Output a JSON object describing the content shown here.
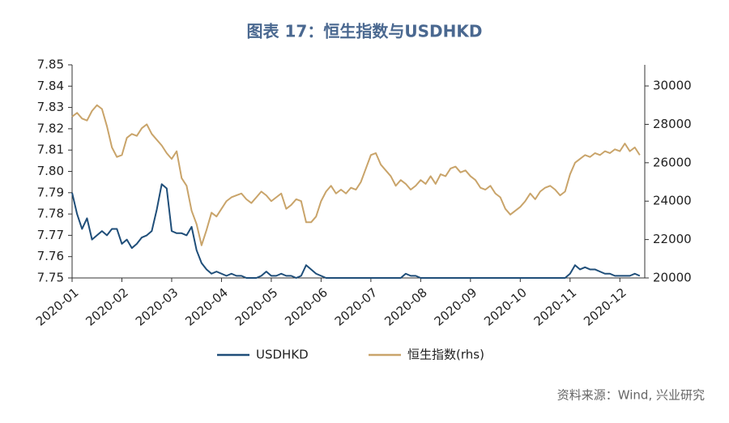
{
  "chart_data": {
    "type": "line",
    "title": "图表 17：恒生指数与USDHKD",
    "source": "资料来源：Wind, 兴业研究",
    "x": [
      1.0,
      1.1,
      1.2,
      1.3,
      1.4,
      1.5,
      1.6,
      1.7,
      1.8,
      1.9,
      2.0,
      2.1,
      2.2,
      2.3,
      2.4,
      2.5,
      2.6,
      2.7,
      2.8,
      2.9,
      3.0,
      3.1,
      3.2,
      3.3,
      3.4,
      3.5,
      3.6,
      3.7,
      3.8,
      3.9,
      4.0,
      4.1,
      4.2,
      4.3,
      4.4,
      4.5,
      4.6,
      4.7,
      4.8,
      4.9,
      5.0,
      5.1,
      5.2,
      5.3,
      5.4,
      5.5,
      5.6,
      5.7,
      5.8,
      5.9,
      6.0,
      6.1,
      6.2,
      6.3,
      6.4,
      6.5,
      6.6,
      6.7,
      6.8,
      6.9,
      7.0,
      7.1,
      7.2,
      7.3,
      7.4,
      7.5,
      7.6,
      7.7,
      7.8,
      7.9,
      8.0,
      8.1,
      8.2,
      8.3,
      8.4,
      8.5,
      8.6,
      8.7,
      8.8,
      8.9,
      9.0,
      9.1,
      9.2,
      9.3,
      9.4,
      9.5,
      9.6,
      9.7,
      9.8,
      9.9,
      10.0,
      10.1,
      10.2,
      10.3,
      10.4,
      10.5,
      10.6,
      10.7,
      10.8,
      10.9,
      11.0,
      11.1,
      11.2,
      11.3,
      11.4,
      11.5,
      11.6,
      11.7,
      11.8,
      11.9,
      12.0,
      12.1,
      12.2,
      12.3,
      12.4
    ],
    "xlim": [
      1,
      12.5
    ],
    "xticks": [
      {
        "value": 1,
        "label": "2020-01"
      },
      {
        "value": 2,
        "label": "2020-02"
      },
      {
        "value": 3,
        "label": "2020-03"
      },
      {
        "value": 4,
        "label": "2020-04"
      },
      {
        "value": 5,
        "label": "2020-05"
      },
      {
        "value": 6,
        "label": "2020-06"
      },
      {
        "value": 7,
        "label": "2020-07"
      },
      {
        "value": 8,
        "label": "2020-08"
      },
      {
        "value": 9,
        "label": "2020-09"
      },
      {
        "value": 10,
        "label": "2020-10"
      },
      {
        "value": 11,
        "label": "2020-11"
      },
      {
        "value": 12,
        "label": "2020-12"
      }
    ],
    "ylim": [
      7.75,
      7.85
    ],
    "yticks": [
      {
        "value": 7.75,
        "label": "7.75"
      },
      {
        "value": 7.76,
        "label": "7.76"
      },
      {
        "value": 7.77,
        "label": "7.77"
      },
      {
        "value": 7.78,
        "label": "7.78"
      },
      {
        "value": 7.79,
        "label": "7.79"
      },
      {
        "value": 7.8,
        "label": "7.80"
      },
      {
        "value": 7.81,
        "label": "7.81"
      },
      {
        "value": 7.82,
        "label": "7.82"
      },
      {
        "value": 7.83,
        "label": "7.83"
      },
      {
        "value": 7.84,
        "label": "7.84"
      },
      {
        "value": 7.85,
        "label": "7.85"
      }
    ],
    "y2lim": [
      20000,
      31100
    ],
    "y2ticks": [
      20000,
      22000,
      24000,
      26000,
      28000,
      30000
    ],
    "series": [
      {
        "name": "USDHKD",
        "color": "#1f4e79",
        "values": [
          7.79,
          7.78,
          7.773,
          7.778,
          7.768,
          7.77,
          7.772,
          7.77,
          7.773,
          7.773,
          7.766,
          7.768,
          7.764,
          7.766,
          7.769,
          7.77,
          7.772,
          7.782,
          7.794,
          7.792,
          7.772,
          7.771,
          7.771,
          7.77,
          7.774,
          7.763,
          7.757,
          7.754,
          7.752,
          7.753,
          7.752,
          7.751,
          7.752,
          7.751,
          7.751,
          7.75,
          7.75,
          7.75,
          7.751,
          7.753,
          7.751,
          7.751,
          7.752,
          7.751,
          7.751,
          7.75,
          7.751,
          7.756,
          7.754,
          7.752,
          7.751,
          7.75,
          7.75,
          7.75,
          7.75,
          7.75,
          7.75,
          7.75,
          7.75,
          7.75,
          7.75,
          7.75,
          7.75,
          7.75,
          7.75,
          7.75,
          7.75,
          7.752,
          7.751,
          7.751,
          7.75,
          7.75,
          7.75,
          7.75,
          7.75,
          7.75,
          7.75,
          7.75,
          7.75,
          7.75,
          7.75,
          7.75,
          7.75,
          7.75,
          7.75,
          7.75,
          7.75,
          7.75,
          7.75,
          7.75,
          7.75,
          7.75,
          7.75,
          7.75,
          7.75,
          7.75,
          7.75,
          7.75,
          7.75,
          7.75,
          7.752,
          7.756,
          7.754,
          7.755,
          7.754,
          7.754,
          7.753,
          7.752,
          7.752,
          7.751,
          7.751,
          7.751,
          7.751,
          7.752,
          7.751
        ]
      },
      {
        "name": "恒生指数(rhs)",
        "color": "#c9a46a",
        "axis": "y2",
        "values": [
          28400,
          28600,
          28300,
          28200,
          28700,
          29000,
          28800,
          27900,
          26800,
          26300,
          26400,
          27300,
          27500,
          27400,
          27800,
          28000,
          27500,
          27200,
          26900,
          26500,
          26200,
          26600,
          25200,
          24800,
          23500,
          22800,
          21700,
          22500,
          23400,
          23200,
          23600,
          24000,
          24200,
          24300,
          24400,
          24100,
          23900,
          24200,
          24500,
          24300,
          24000,
          24200,
          24400,
          23600,
          23800,
          24100,
          24000,
          22900,
          22900,
          23200,
          24000,
          24500,
          24800,
          24400,
          24600,
          24400,
          24700,
          24600,
          25000,
          25700,
          26400,
          26500,
          25900,
          25600,
          25300,
          24800,
          25100,
          24900,
          24600,
          24800,
          25100,
          24900,
          25300,
          24900,
          25400,
          25300,
          25700,
          25800,
          25500,
          25600,
          25300,
          25100,
          24700,
          24600,
          24800,
          24400,
          24200,
          23600,
          23300,
          23500,
          23700,
          24000,
          24400,
          24100,
          24500,
          24700,
          24800,
          24600,
          24300,
          24500,
          25400,
          26000,
          26200,
          26400,
          26300,
          26500,
          26400,
          26600,
          26500,
          26700,
          26600,
          27000,
          26600,
          26800,
          26400
        ]
      }
    ]
  }
}
